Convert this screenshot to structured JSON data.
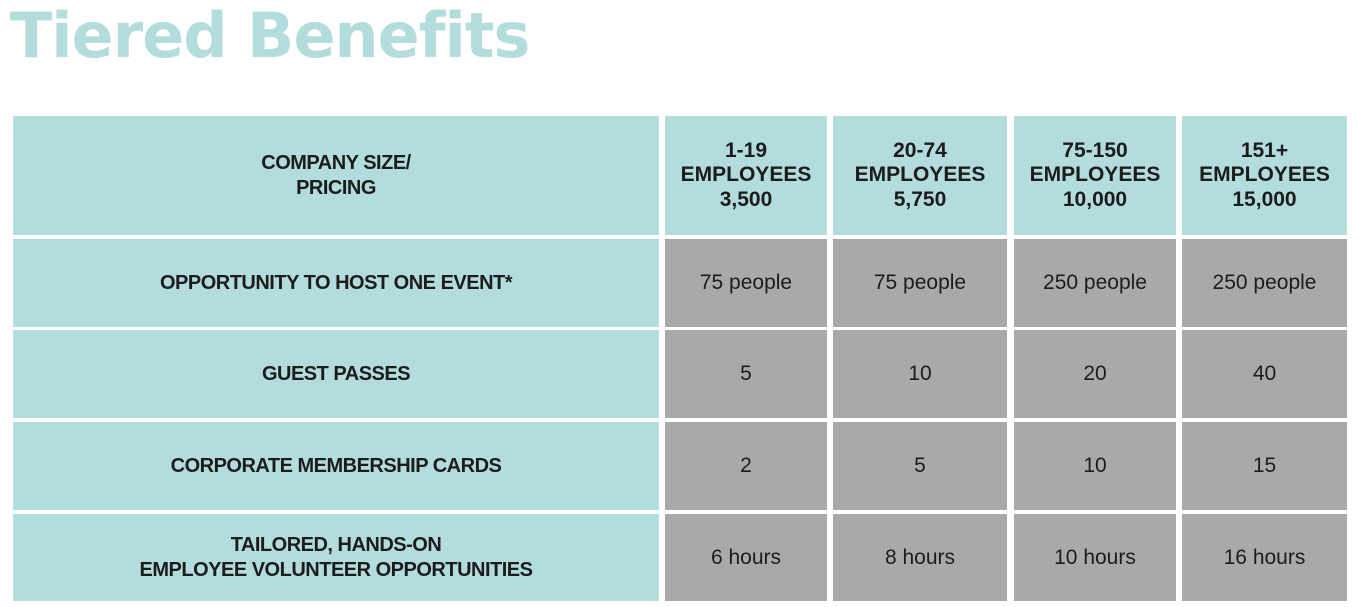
{
  "title": "Tiered Benefits",
  "colors": {
    "title": "#b3dcdc",
    "header_bg": "#b3dcdc",
    "value_bg": "#a9a9a9",
    "text": "#1c1c1c"
  },
  "table": {
    "corner_header": [
      "COMPANY SIZE/",
      "PRICING"
    ],
    "tiers": [
      {
        "range": "1-19",
        "unit": "EMPLOYEES",
        "price": "3,500"
      },
      {
        "range": "20-74",
        "unit": "EMPLOYEES",
        "price": "5,750"
      },
      {
        "range": "75-150",
        "unit": "EMPLOYEES",
        "price": "10,000"
      },
      {
        "range": "151+",
        "unit": "EMPLOYEES",
        "price": "15,000"
      }
    ],
    "rows": [
      {
        "label": [
          "OPPORTUNITY TO HOST ONE EVENT*"
        ],
        "values": [
          "75 people",
          "75 people",
          "250 people",
          "250 people"
        ]
      },
      {
        "label": [
          "GUEST PASSES"
        ],
        "values": [
          "5",
          "10",
          "20",
          "40"
        ]
      },
      {
        "label": [
          "CORPORATE MEMBERSHIP CARDS"
        ],
        "values": [
          "2",
          "5",
          "10",
          "15"
        ]
      },
      {
        "label": [
          "TAILORED, HANDS-ON",
          "EMPLOYEE VOLUNTEER OPPORTUNITIES"
        ],
        "values": [
          "6 hours",
          "8 hours",
          "10 hours",
          "16 hours"
        ]
      }
    ]
  }
}
